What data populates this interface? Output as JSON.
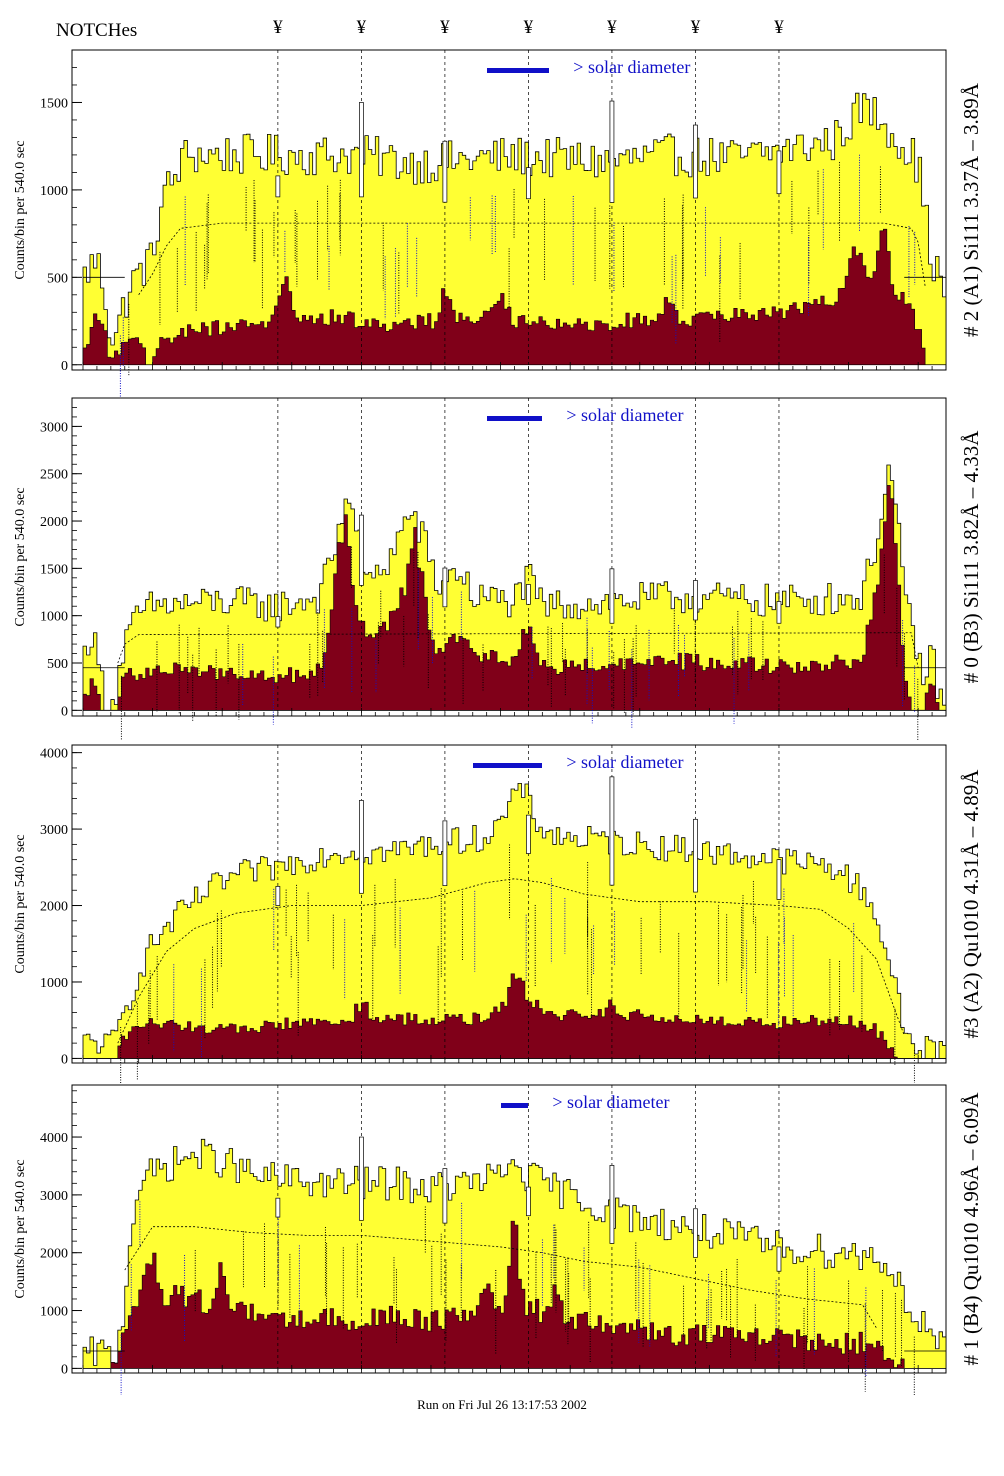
{
  "header": {
    "title": "NOTCHes",
    "notch_symbol": "¥"
  },
  "notches": [
    28,
    40,
    52,
    64,
    76,
    88,
    100
  ],
  "footer": {
    "run_text": "Run on Fri Jul 26 13:17:53 2002"
  },
  "colors": {
    "fill_total": "#ffff33",
    "fill_excess": "#800019",
    "legend_accent": "#1010c8"
  },
  "chart_data": [
    {
      "type": "area",
      "title": "",
      "ylabel": "Counts/bin per    540.0 sec",
      "right_label": "# 2 (A1) Si111  3.37Å – 3.89Å",
      "legend_text": "> solar diameter",
      "xlim": [
        0,
        124
      ],
      "ylim": [
        -30,
        1800
      ],
      "yticks": [
        0,
        500,
        1000,
        1500
      ],
      "total_profile": [
        [
          0,
          490
        ],
        [
          1,
          560
        ],
        [
          2,
          600
        ],
        [
          3,
          450
        ],
        [
          4,
          160
        ],
        [
          5,
          200
        ],
        [
          6,
          350
        ],
        [
          7,
          460
        ],
        [
          8,
          520
        ],
        [
          9,
          570
        ],
        [
          10,
          600
        ],
        [
          11,
          880
        ],
        [
          12,
          1000
        ],
        [
          13,
          1050
        ],
        [
          14,
          1150
        ],
        [
          15,
          1200
        ],
        [
          40,
          1200
        ],
        [
          48,
          1150
        ],
        [
          58,
          1180
        ],
        [
          62,
          1190
        ],
        [
          68,
          1180
        ],
        [
          76,
          1160
        ],
        [
          84,
          1200
        ],
        [
          94,
          1180
        ],
        [
          108,
          1280
        ],
        [
          112,
          1480
        ],
        [
          115,
          1400
        ],
        [
          118,
          1250
        ],
        [
          120,
          1150
        ],
        [
          122,
          600
        ],
        [
          124,
          400
        ]
      ],
      "total_jitter": 120,
      "excess_profile": [
        [
          0,
          0
        ],
        [
          1,
          180
        ],
        [
          2,
          300
        ],
        [
          3,
          200
        ],
        [
          4,
          0
        ],
        [
          6,
          100
        ],
        [
          8,
          150
        ],
        [
          9,
          0
        ],
        [
          10,
          0
        ],
        [
          11,
          120
        ],
        [
          14,
          180
        ],
        [
          22,
          220
        ],
        [
          30,
          250
        ],
        [
          38,
          260
        ],
        [
          45,
          200
        ],
        [
          52,
          260
        ],
        [
          60,
          250
        ],
        [
          66,
          250
        ],
        [
          72,
          220
        ],
        [
          80,
          250
        ],
        [
          90,
          250
        ],
        [
          96,
          280
        ],
        [
          104,
          300
        ],
        [
          110,
          420
        ],
        [
          114,
          500
        ],
        [
          117,
          400
        ],
        [
          119,
          300
        ],
        [
          120,
          200
        ],
        [
          121,
          0
        ],
        [
          124,
          0
        ]
      ],
      "excess_jitter": 100,
      "excess_peaks": [
        [
          29,
          300
        ],
        [
          52,
          200
        ],
        [
          60,
          150
        ],
        [
          84,
          130
        ],
        [
          111,
          300
        ],
        [
          115,
          350
        ]
      ],
      "model_curve": [
        [
          8,
          400
        ],
        [
          10,
          520
        ],
        [
          12,
          680
        ],
        [
          14,
          780
        ],
        [
          20,
          810
        ],
        [
          115,
          810
        ],
        [
          119,
          780
        ],
        [
          120,
          700
        ],
        [
          121,
          450
        ]
      ],
      "hline": 500,
      "spike_positions": [
        28,
        40,
        52,
        64,
        76,
        88,
        100
      ],
      "legend_bar": [
        58,
        67
      ]
    },
    {
      "type": "area",
      "title": "",
      "ylabel": "Counts/bin per    540.0 sec",
      "right_label": "# 0 (B3) Si111  3.82Å – 4.33Å",
      "legend_text": "> solar diameter",
      "xlim": [
        0,
        124
      ],
      "ylim": [
        -60,
        3300
      ],
      "yticks": [
        0,
        500,
        1000,
        1500,
        2000,
        2500,
        3000
      ],
      "total_profile": [
        [
          0,
          500
        ],
        [
          1,
          850
        ],
        [
          2,
          600
        ],
        [
          3,
          200
        ],
        [
          4,
          0
        ],
        [
          5,
          300
        ],
        [
          6,
          700
        ],
        [
          8,
          1000
        ],
        [
          10,
          1100
        ],
        [
          20,
          1150
        ],
        [
          28,
          1100
        ],
        [
          34,
          1200
        ],
        [
          37,
          1900
        ],
        [
          38,
          2400
        ],
        [
          39,
          2000
        ],
        [
          41,
          1300
        ],
        [
          44,
          1600
        ],
        [
          47,
          2100
        ],
        [
          49,
          1800
        ],
        [
          51,
          1300
        ],
        [
          54,
          1500
        ],
        [
          56,
          1200
        ],
        [
          62,
          1150
        ],
        [
          64,
          1400
        ],
        [
          66,
          1100
        ],
        [
          76,
          1150
        ],
        [
          86,
          1200
        ],
        [
          100,
          1150
        ],
        [
          112,
          1200
        ],
        [
          114,
          1800
        ],
        [
          116,
          2600
        ],
        [
          117,
          2000
        ],
        [
          118,
          1200
        ],
        [
          120,
          600
        ],
        [
          121,
          300
        ],
        [
          122,
          600
        ],
        [
          123,
          200
        ],
        [
          124,
          0
        ]
      ],
      "total_jitter": 180,
      "excess_profile": [
        [
          0,
          0
        ],
        [
          1,
          300
        ],
        [
          2,
          200
        ],
        [
          3,
          0
        ],
        [
          5,
          0
        ],
        [
          6,
          350
        ],
        [
          10,
          400
        ],
        [
          20,
          380
        ],
        [
          30,
          350
        ],
        [
          34,
          400
        ],
        [
          37,
          1200
        ],
        [
          38,
          1600
        ],
        [
          39,
          1200
        ],
        [
          41,
          700
        ],
        [
          44,
          900
        ],
        [
          47,
          1400
        ],
        [
          49,
          1100
        ],
        [
          51,
          600
        ],
        [
          54,
          800
        ],
        [
          56,
          550
        ],
        [
          62,
          500
        ],
        [
          64,
          700
        ],
        [
          66,
          450
        ],
        [
          76,
          450
        ],
        [
          86,
          500
        ],
        [
          100,
          450
        ],
        [
          112,
          500
        ],
        [
          114,
          1300
        ],
        [
          116,
          1900
        ],
        [
          117,
          1400
        ],
        [
          118,
          500
        ],
        [
          119,
          0
        ],
        [
          121,
          0
        ],
        [
          122,
          400
        ],
        [
          123,
          0
        ],
        [
          124,
          0
        ]
      ],
      "excess_jitter": 180,
      "excess_peaks": [
        [
          37,
          800
        ],
        [
          48,
          600
        ],
        [
          64,
          300
        ],
        [
          116,
          500
        ]
      ],
      "model_curve": [
        [
          5,
          500
        ],
        [
          6,
          700
        ],
        [
          8,
          800
        ],
        [
          119,
          820
        ],
        [
          120,
          450
        ]
      ],
      "hline": 450,
      "spike_positions": [
        28,
        40,
        52,
        64,
        76,
        88,
        100
      ],
      "legend_bar": [
        58,
        66
      ]
    },
    {
      "type": "area",
      "title": "",
      "ylabel": "Counts/bin per    540.0 sec",
      "right_label": "#3 (A2) Qu1010  4.31Å – 4.89Å",
      "legend_text": "> solar diameter",
      "xlim": [
        0,
        124
      ],
      "ylim": [
        -60,
        4100
      ],
      "yticks": [
        0,
        1000,
        2000,
        3000,
        4000
      ],
      "total_profile": [
        [
          0,
          200
        ],
        [
          2,
          220
        ],
        [
          3,
          200
        ],
        [
          4,
          150
        ],
        [
          6,
          600
        ],
        [
          8,
          1100
        ],
        [
          10,
          1500
        ],
        [
          14,
          1900
        ],
        [
          18,
          2200
        ],
        [
          22,
          2400
        ],
        [
          28,
          2500
        ],
        [
          36,
          2700
        ],
        [
          44,
          2700
        ],
        [
          50,
          2800
        ],
        [
          58,
          2900
        ],
        [
          61,
          3200
        ],
        [
          63,
          3600
        ],
        [
          65,
          3100
        ],
        [
          68,
          2900
        ],
        [
          80,
          2800
        ],
        [
          90,
          2700
        ],
        [
          100,
          2600
        ],
        [
          108,
          2500
        ],
        [
          112,
          2200
        ],
        [
          114,
          1900
        ],
        [
          116,
          1200
        ],
        [
          118,
          400
        ],
        [
          120,
          100
        ],
        [
          122,
          150
        ],
        [
          124,
          100
        ]
      ],
      "total_jitter": 180,
      "excess_profile": [
        [
          0,
          0
        ],
        [
          5,
          0
        ],
        [
          6,
          300
        ],
        [
          10,
          450
        ],
        [
          14,
          400
        ],
        [
          20,
          350
        ],
        [
          30,
          450
        ],
        [
          40,
          500
        ],
        [
          50,
          500
        ],
        [
          58,
          500
        ],
        [
          61,
          700
        ],
        [
          63,
          900
        ],
        [
          65,
          700
        ],
        [
          68,
          550
        ],
        [
          80,
          550
        ],
        [
          90,
          500
        ],
        [
          100,
          450
        ],
        [
          108,
          500
        ],
        [
          112,
          450
        ],
        [
          114,
          350
        ],
        [
          116,
          150
        ],
        [
          117,
          0
        ],
        [
          124,
          0
        ]
      ],
      "excess_jitter": 160,
      "excess_peaks": [
        [
          40,
          300
        ],
        [
          62,
          400
        ],
        [
          76,
          200
        ]
      ],
      "model_curve": [
        [
          5,
          200
        ],
        [
          8,
          800
        ],
        [
          12,
          1400
        ],
        [
          16,
          1700
        ],
        [
          22,
          1900
        ],
        [
          30,
          2000
        ],
        [
          40,
          2000
        ],
        [
          50,
          2100
        ],
        [
          58,
          2300
        ],
        [
          62,
          2350
        ],
        [
          66,
          2300
        ],
        [
          72,
          2150
        ],
        [
          80,
          2050
        ],
        [
          90,
          2050
        ],
        [
          100,
          2000
        ],
        [
          106,
          1950
        ],
        [
          110,
          1700
        ],
        [
          114,
          1300
        ],
        [
          116,
          800
        ],
        [
          118,
          300
        ]
      ],
      "hline": 0,
      "spike_positions": [
        28,
        40,
        52,
        64,
        76,
        88,
        100
      ],
      "legend_bar": [
        56,
        66
      ]
    },
    {
      "type": "area",
      "title": "",
      "ylabel": "Counts/bin per    540.0 sec",
      "right_label": "# 1 (B4) Qu1010 4.96Å – 6.09Å",
      "legend_text": "> solar diameter",
      "xlim": [
        0,
        124
      ],
      "ylim": [
        -80,
        4900
      ],
      "yticks": [
        0,
        1000,
        2000,
        3000,
        4000
      ],
      "total_profile": [
        [
          0,
          150
        ],
        [
          2,
          300
        ],
        [
          4,
          200
        ],
        [
          5,
          300
        ],
        [
          6,
          1200
        ],
        [
          7,
          2500
        ],
        [
          8,
          3200
        ],
        [
          12,
          3500
        ],
        [
          16,
          3700
        ],
        [
          20,
          3600
        ],
        [
          25,
          3300
        ],
        [
          35,
          3200
        ],
        [
          45,
          3200
        ],
        [
          50,
          3100
        ],
        [
          55,
          3200
        ],
        [
          60,
          3300
        ],
        [
          62,
          3600
        ],
        [
          64,
          3300
        ],
        [
          70,
          3000
        ],
        [
          76,
          2700
        ],
        [
          84,
          2500
        ],
        [
          92,
          2300
        ],
        [
          100,
          2100
        ],
        [
          110,
          2000
        ],
        [
          115,
          1900
        ],
        [
          118,
          1300
        ],
        [
          120,
          800
        ],
        [
          122,
          600
        ],
        [
          124,
          300
        ]
      ],
      "total_jitter": 300,
      "excess_profile": [
        [
          0,
          0
        ],
        [
          4,
          0
        ],
        [
          5,
          200
        ],
        [
          6,
          700
        ],
        [
          8,
          1300
        ],
        [
          14,
          1200
        ],
        [
          18,
          1100
        ],
        [
          22,
          1000
        ],
        [
          28,
          800
        ],
        [
          36,
          800
        ],
        [
          44,
          850
        ],
        [
          50,
          800
        ],
        [
          56,
          900
        ],
        [
          60,
          1000
        ],
        [
          62,
          1400
        ],
        [
          64,
          1000
        ],
        [
          70,
          800
        ],
        [
          76,
          650
        ],
        [
          84,
          550
        ],
        [
          92,
          500
        ],
        [
          100,
          450
        ],
        [
          108,
          400
        ],
        [
          114,
          400
        ],
        [
          117,
          150
        ],
        [
          118,
          0
        ],
        [
          124,
          0
        ]
      ],
      "excess_jitter": 400,
      "excess_peaks": [
        [
          10,
          700
        ],
        [
          20,
          600
        ],
        [
          58,
          800
        ],
        [
          62,
          1200
        ],
        [
          68,
          500
        ]
      ],
      "model_curve": [
        [
          6,
          1700
        ],
        [
          10,
          2450
        ],
        [
          16,
          2450
        ],
        [
          24,
          2350
        ],
        [
          32,
          2300
        ],
        [
          40,
          2300
        ],
        [
          50,
          2200
        ],
        [
          60,
          2100
        ],
        [
          66,
          2000
        ],
        [
          72,
          1850
        ],
        [
          80,
          1750
        ],
        [
          88,
          1550
        ],
        [
          96,
          1350
        ],
        [
          104,
          1200
        ],
        [
          112,
          1100
        ],
        [
          114,
          700
        ]
      ],
      "hline": 300,
      "spike_positions": [
        28,
        40,
        52,
        64,
        76,
        88,
        100
      ],
      "legend_bar": [
        60,
        64
      ]
    }
  ]
}
